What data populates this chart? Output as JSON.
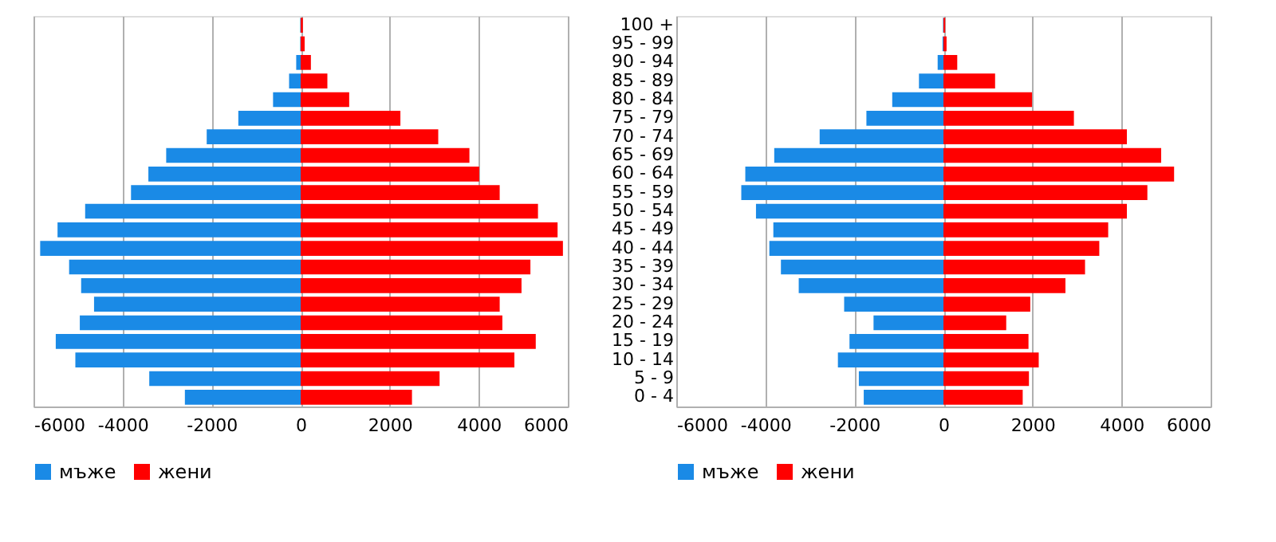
{
  "chart_data": [
    {
      "type": "bar",
      "orientation": "horizontal",
      "categories": [
        null,
        null,
        null,
        null,
        null,
        null,
        null,
        null,
        null,
        null,
        null,
        null,
        null,
        null,
        null,
        null,
        null,
        null,
        null,
        null,
        null
      ],
      "series": [
        {
          "name": "мъже",
          "color": "#1a8ae6",
          "values": [
            -10,
            -10,
            -100,
            -260,
            -620,
            -1400,
            -2110,
            -3020,
            -3420,
            -3810,
            -4840,
            -5460,
            -5850,
            -5200,
            -4930,
            -4640,
            -4960,
            -5500,
            -5060,
            -3400,
            -2600
          ]
        },
        {
          "name": "жени",
          "color": "#ff0000",
          "values": [
            50,
            90,
            230,
            600,
            1090,
            2240,
            3090,
            3790,
            4010,
            4470,
            5330,
            5770,
            5890,
            5160,
            4960,
            4470,
            4530,
            5280,
            4800,
            3120,
            2500
          ]
        }
      ],
      "xlim": [
        -6000,
        6000
      ],
      "xticks": [
        -6000,
        -4000,
        -2000,
        0,
        2000,
        4000,
        6000
      ],
      "grid": "x",
      "legend": "bottom",
      "tick_labels": "x",
      "stacked": true
    },
    {
      "type": "bar",
      "orientation": "horizontal",
      "categories": [
        "100 +",
        "95 - 99",
        "90 - 94",
        "85 - 89",
        "80 - 84",
        "75 - 79",
        "70 - 74",
        "65 - 69",
        "60 - 64",
        "55 - 59",
        "50 - 54",
        "45 - 49",
        "40 - 44",
        "35 - 39",
        "30 - 34",
        "25 - 29",
        "20 - 24",
        "15 - 19",
        "10 - 14",
        "5 - 9",
        "0 - 4"
      ],
      "series": [
        {
          "name": "мъже",
          "color": "#1a8ae6",
          "values": [
            -10,
            -20,
            -130,
            -550,
            -1150,
            -1730,
            -2780,
            -3800,
            -4450,
            -4540,
            -4210,
            -3820,
            -3910,
            -3650,
            -3250,
            -2230,
            -1570,
            -2110,
            -2370,
            -1900,
            -1790
          ]
        },
        {
          "name": "жени",
          "color": "#ff0000",
          "values": [
            40,
            70,
            310,
            1160,
            1990,
            2930,
            4120,
            4890,
            5180,
            4580,
            4120,
            3700,
            3500,
            3180,
            2740,
            1950,
            1410,
            1910,
            2140,
            1920,
            1780
          ]
        }
      ],
      "xlim": [
        -6000,
        6000
      ],
      "xticks": [
        -6000,
        -4000,
        -2000,
        0,
        2000,
        4000,
        6000
      ],
      "grid": "x",
      "legend": "bottom",
      "stacked": true
    }
  ]
}
